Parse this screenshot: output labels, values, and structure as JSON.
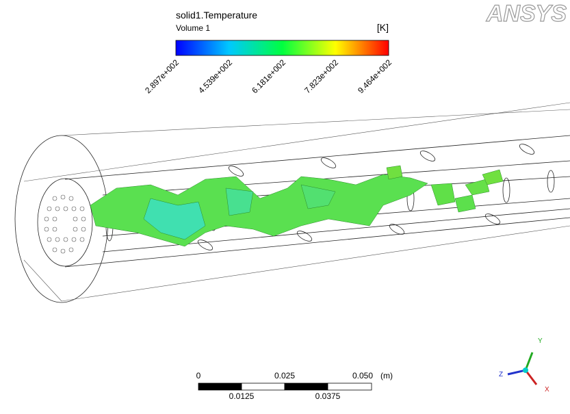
{
  "legend": {
    "title": "solid1.Temperature",
    "subtitle": "Volume 1",
    "unit": "[K]",
    "ticks": [
      "2.897e+002",
      "4.539e+002",
      "6.181e+002",
      "7.823e+002",
      "9.464e+002"
    ]
  },
  "logo": "ANSYS",
  "scale_bar": {
    "top_labels": [
      "0",
      "0.025",
      "0.050"
    ],
    "unit": "(m)",
    "bottom_labels": [
      "0.0125",
      "0.0375"
    ]
  },
  "triad": {
    "x": "X",
    "y": "Y",
    "z": "Z"
  }
}
